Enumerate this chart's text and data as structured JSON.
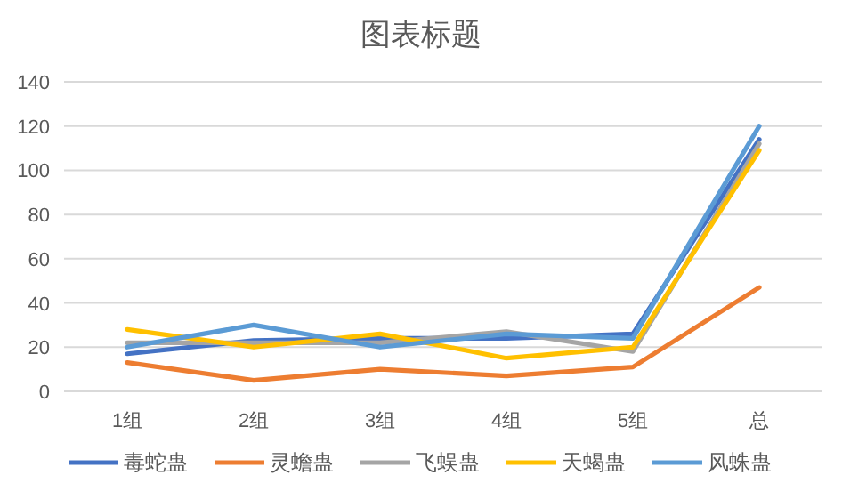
{
  "chart_data": {
    "type": "line",
    "title": "图表标题",
    "categories": [
      "1组",
      "2组",
      "3组",
      "4组",
      "5组",
      "总"
    ],
    "series": [
      {
        "name": "毒蛇蛊",
        "color": "#4472c4",
        "values": [
          17,
          23,
          24,
          24,
          26,
          114
        ]
      },
      {
        "name": "灵蟾蛊",
        "color": "#ed7d31",
        "values": [
          13,
          5,
          10,
          7,
          11,
          47
        ]
      },
      {
        "name": "飞蜈蛊",
        "color": "#a5a5a5",
        "values": [
          22,
          22,
          22,
          27,
          18,
          112
        ]
      },
      {
        "name": "天蝎蛊",
        "color": "#ffc000",
        "values": [
          28,
          20,
          26,
          15,
          20,
          109
        ]
      },
      {
        "name": "风蛛蛊",
        "color": "#5b9bd5",
        "values": [
          20,
          30,
          20,
          26,
          24,
          120
        ]
      }
    ],
    "ylim": [
      0,
      140
    ],
    "yticks": [
      0,
      20,
      40,
      60,
      80,
      100,
      120,
      140
    ],
    "grid": "y",
    "legend": "bottom",
    "marker": "none",
    "line_style": "solid"
  }
}
